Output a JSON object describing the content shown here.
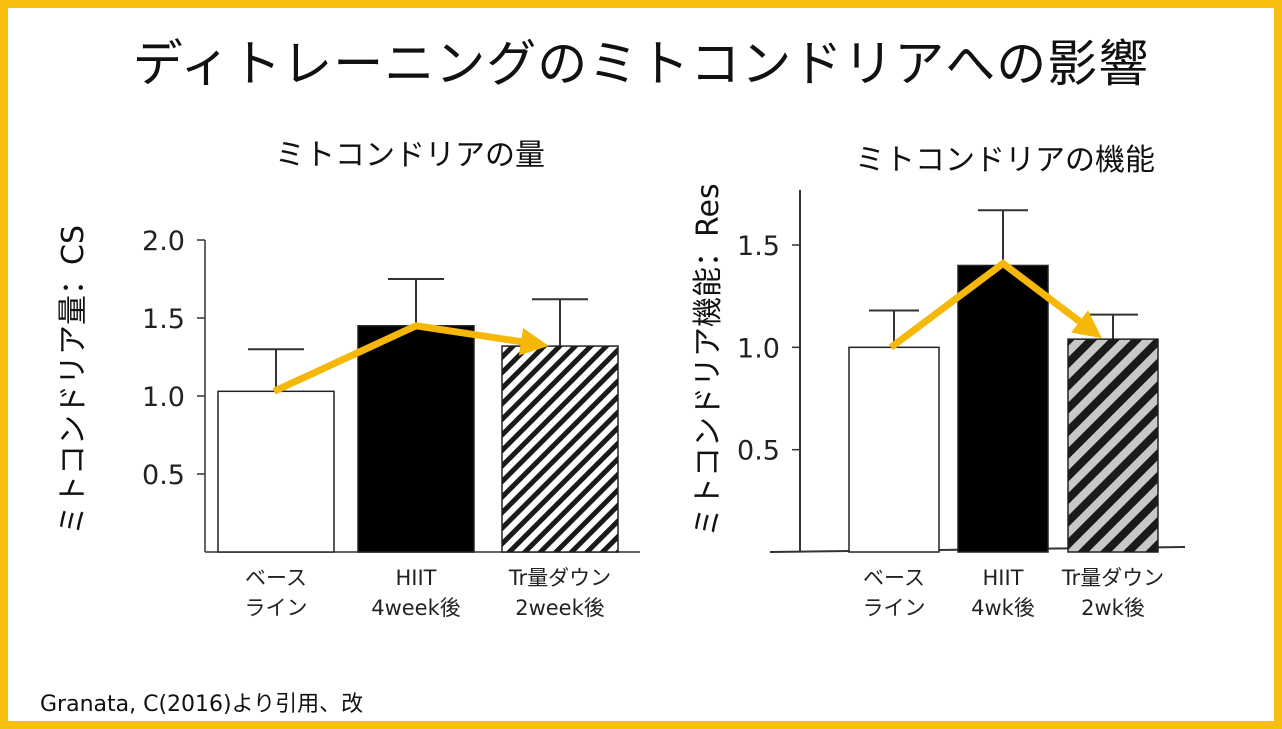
{
  "title": "ディトレーニングのミトコンドリアへの影響",
  "source": "Granata, C(2016)より引用、改",
  "colors": {
    "frame": "#f7bd0f",
    "arrow": "#f5b80a",
    "bar_white": "#ffffff",
    "bar_black": "#000000",
    "hatch": "#1a1a1a"
  },
  "chart_data": [
    {
      "type": "bar",
      "title": "ミトコンドリアの量",
      "ylabel": "ミトコンドリア量：CS",
      "ylim": [
        0,
        2.0
      ],
      "yticks": [
        "2.0",
        "1.5",
        "1.0",
        "0.5"
      ],
      "categories": [
        [
          "ベース",
          "ライン"
        ],
        [
          "HIIT",
          "4week後"
        ],
        [
          "Tr量ダウン",
          "2week後"
        ]
      ],
      "values": [
        1.03,
        1.45,
        1.32
      ],
      "error_upper": [
        1.3,
        1.75,
        1.62
      ],
      "fills": [
        "white",
        "black",
        "hatch"
      ],
      "trend_arrow": true
    },
    {
      "type": "bar",
      "title": "ミトコンドリアの機能",
      "ylabel": "ミトコンドリア機能：Res",
      "ylim": [
        0,
        1.7
      ],
      "yticks": [
        "1.5",
        "1.0",
        "0.5"
      ],
      "categories": [
        [
          "ベース",
          "ライン"
        ],
        [
          "HIIT",
          "4wk後"
        ],
        [
          "Tr量ダウン",
          "2wk後"
        ]
      ],
      "values": [
        1.0,
        1.4,
        1.04
      ],
      "error_upper": [
        1.18,
        1.67,
        1.16
      ],
      "fills": [
        "white",
        "black",
        "hatch"
      ],
      "trend_arrow": true
    }
  ]
}
